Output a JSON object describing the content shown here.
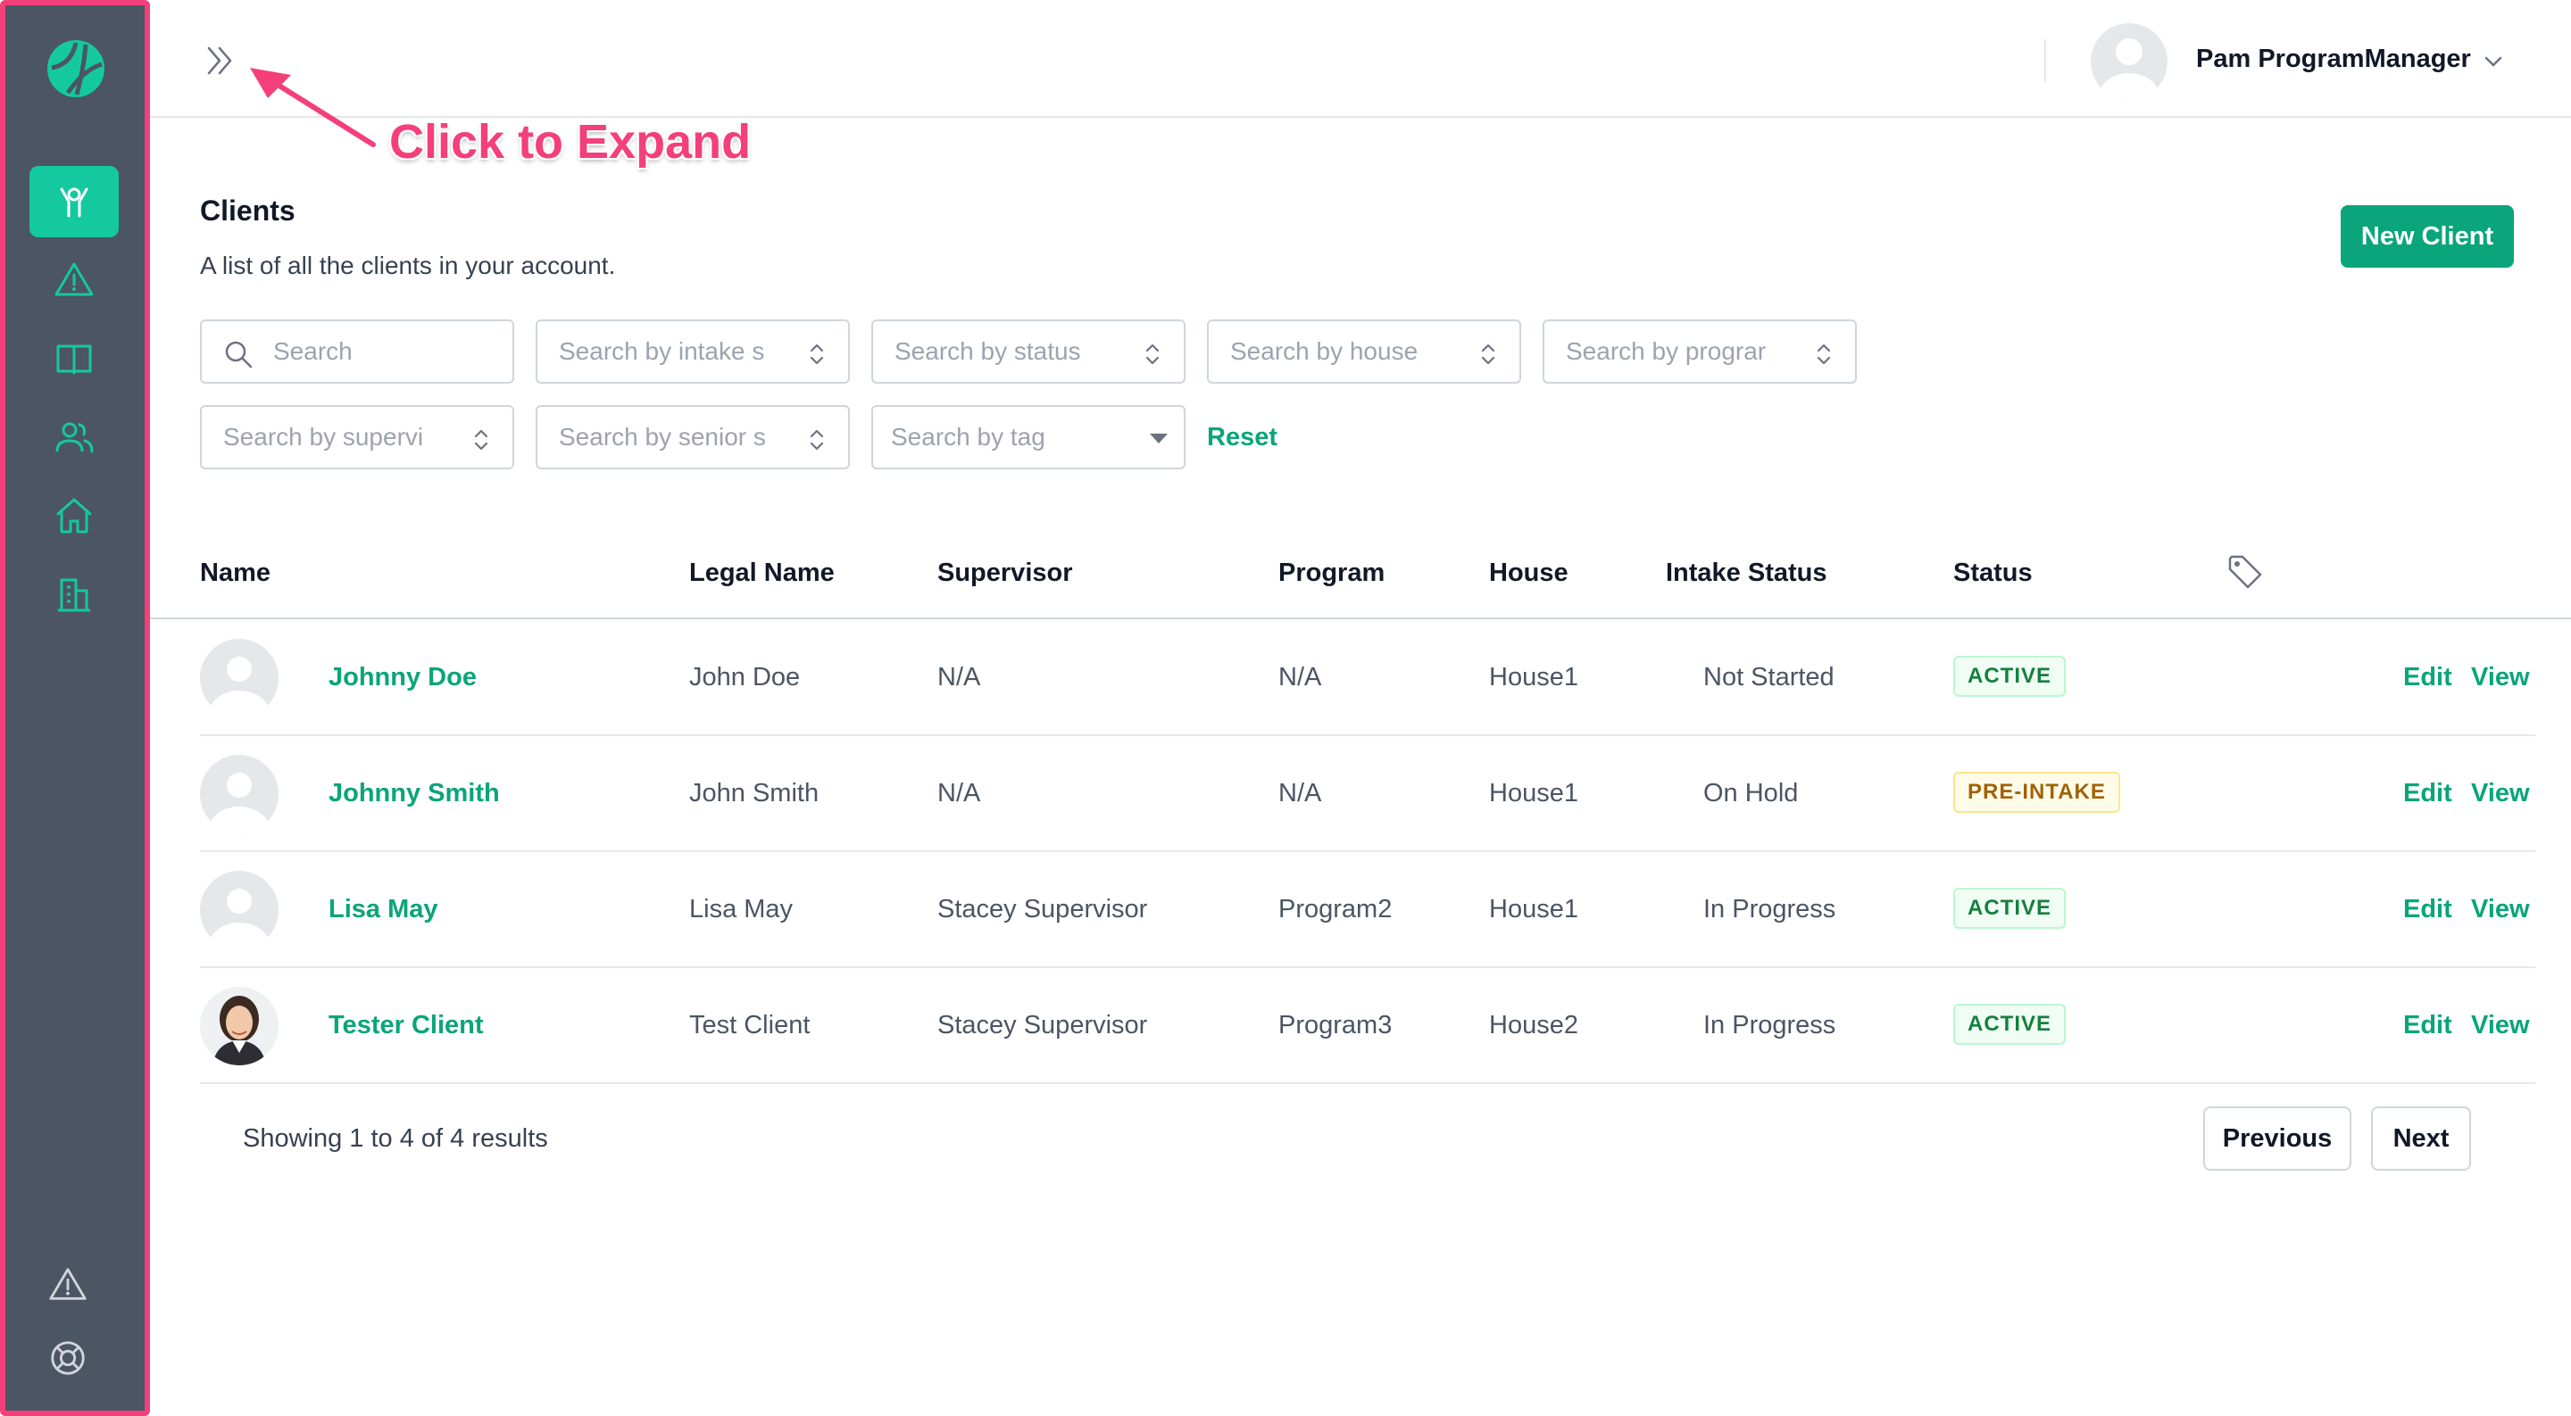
{
  "topbar": {
    "user_name": "Pam ProgramManager"
  },
  "annotation": {
    "text": "Click to Expand",
    "color": "#f43f7a"
  },
  "sidebar": {
    "items": [
      {
        "icon": "clients-icon",
        "active": true
      },
      {
        "icon": "warning-icon",
        "active": false
      },
      {
        "icon": "book-icon",
        "active": false
      },
      {
        "icon": "users-icon",
        "active": false
      },
      {
        "icon": "home-icon",
        "active": false
      },
      {
        "icon": "building-icon",
        "active": false
      }
    ],
    "bottom": [
      {
        "icon": "alert-icon"
      },
      {
        "icon": "support-icon"
      }
    ]
  },
  "header": {
    "title": "Clients",
    "subtitle": "A list of all the clients in your account.",
    "new_client_label": "New Client"
  },
  "filters": {
    "search": "Search",
    "intake": "Search by intake s",
    "status": "Search by status",
    "house": "Search by house",
    "program": "Search by prograr",
    "supervisor": "Search by supervi",
    "senior": "Search by senior s",
    "tag": "Search by tag",
    "reset": "Reset"
  },
  "table": {
    "headers": {
      "name": "Name",
      "legal_name": "Legal Name",
      "supervisor": "Supervisor",
      "program": "Program",
      "house": "House",
      "intake_status": "Intake Status",
      "status": "Status"
    },
    "rows": [
      {
        "name": "Johnny Doe",
        "legal_name": "John Doe",
        "supervisor": "N/A",
        "program": "N/A",
        "house": "House1",
        "intake_status": "Not Started",
        "status": "ACTIVE",
        "edit": "Edit",
        "view": "View"
      },
      {
        "name": "Johnny Smith",
        "legal_name": "John Smith",
        "supervisor": "N/A",
        "program": "N/A",
        "house": "House1",
        "intake_status": "On Hold",
        "status": "PRE-INTAKE",
        "edit": "Edit",
        "view": "View"
      },
      {
        "name": "Lisa May",
        "legal_name": "Lisa May",
        "supervisor": "Stacey Supervisor",
        "program": "Program2",
        "house": "House1",
        "intake_status": "In Progress",
        "status": "ACTIVE",
        "edit": "Edit",
        "view": "View"
      },
      {
        "name": "Tester Client",
        "legal_name": "Test Client",
        "supervisor": "Stacey Supervisor",
        "program": "Program3",
        "house": "House2",
        "intake_status": "In Progress",
        "status": "ACTIVE",
        "edit": "Edit",
        "view": "View"
      }
    ]
  },
  "footer": {
    "results": "Showing 1 to 4 of 4 results",
    "previous": "Previous",
    "next": "Next"
  },
  "colors": {
    "accent": "#0aa57a",
    "sidebar_bg": "#4b5563",
    "sidebar_active": "#14c9a0"
  }
}
